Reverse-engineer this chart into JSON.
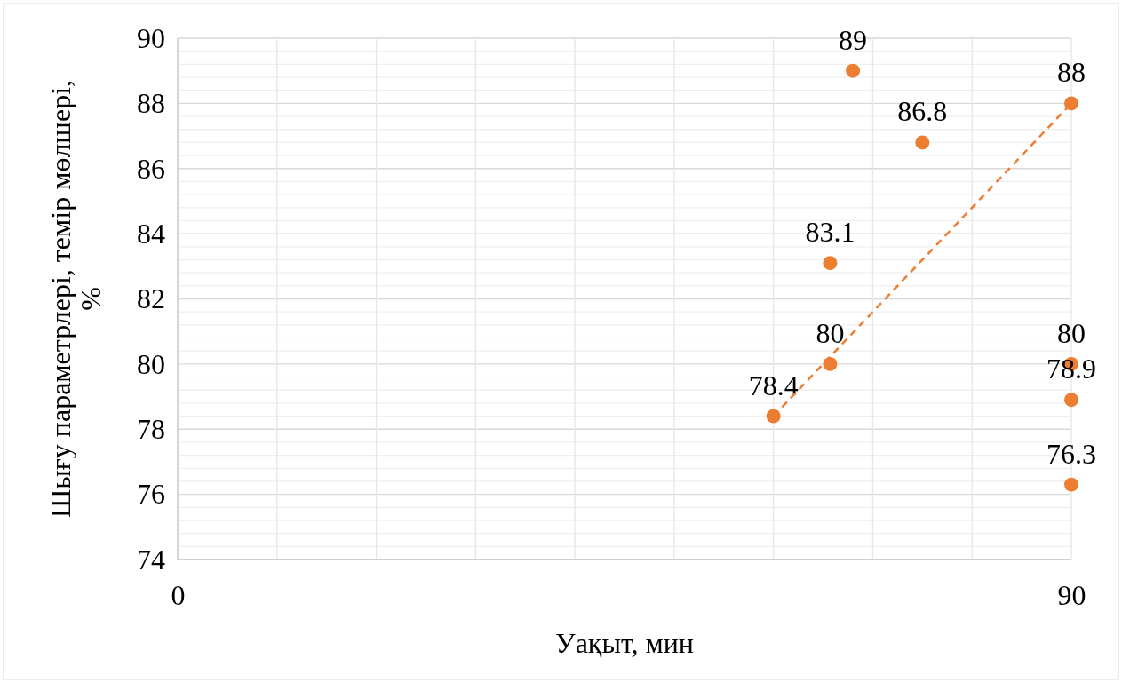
{
  "chart_data": {
    "type": "scatter",
    "xlabel": "Уақыт, мин",
    "ylabel": "Шығу параметрлері, темір мөлшері, %",
    "xlim": [
      0,
      90
    ],
    "ylim": [
      74,
      90
    ],
    "xticks": [
      0,
      {
        "value": 10,
        "label": null
      },
      {
        "value": 20,
        "label": null
      },
      {
        "value": 30,
        "label": null
      },
      {
        "value": 40,
        "label": null
      },
      {
        "value": 50,
        "label": null
      },
      {
        "value": 60,
        "label": null
      },
      {
        "value": 70,
        "label": null
      },
      {
        "value": 80,
        "label": null
      },
      90
    ],
    "yticks": [
      74,
      {
        "value": 74.4,
        "label": null
      },
      {
        "value": 74.8,
        "label": null
      },
      {
        "value": 75.2,
        "label": null
      },
      {
        "value": 75.6,
        "label": null
      },
      76,
      {
        "value": 76.4,
        "label": null
      },
      {
        "value": 76.8,
        "label": null
      },
      {
        "value": 77.2,
        "label": null
      },
      {
        "value": 77.6,
        "label": null
      },
      78,
      {
        "value": 78.4,
        "label": null
      },
      {
        "value": 78.8,
        "label": null
      },
      {
        "value": 79.2,
        "label": null
      },
      {
        "value": 79.6,
        "label": null
      },
      80,
      {
        "value": 80.4,
        "label": null
      },
      {
        "value": 80.8,
        "label": null
      },
      {
        "value": 81.2,
        "label": null
      },
      {
        "value": 81.6,
        "label": null
      },
      82,
      {
        "value": 82.4,
        "label": null
      },
      {
        "value": 82.8,
        "label": null
      },
      {
        "value": 83.2,
        "label": null
      },
      {
        "value": 83.6,
        "label": null
      },
      84,
      {
        "value": 84.4,
        "label": null
      },
      {
        "value": 84.8,
        "label": null
      },
      {
        "value": 85.2,
        "label": null
      },
      {
        "value": 85.6,
        "label": null
      },
      86,
      {
        "value": 86.4,
        "label": null
      },
      {
        "value": 86.8,
        "label": null
      },
      {
        "value": 87.2,
        "label": null
      },
      {
        "value": 87.6,
        "label": null
      },
      88,
      {
        "value": 88.4,
        "label": null
      },
      {
        "value": 88.8,
        "label": null
      },
      {
        "value": 89.2,
        "label": null
      },
      {
        "value": 89.6,
        "label": null
      },
      90
    ],
    "grid": true,
    "data_labels": true,
    "marker": "circle",
    "series": [
      {
        "color": "#ed7d31",
        "x": [
          60,
          65.7,
          65.7,
          68,
          75,
          90,
          90,
          90,
          90
        ],
        "values": [
          78.4,
          80,
          83.1,
          89,
          86.8,
          88,
          80,
          78.9,
          76.3
        ]
      },
      {
        "type": "line",
        "color": "#ed7d31",
        "line_style": "dashed",
        "marker": "none",
        "x": [
          60,
          90
        ],
        "values": [
          78.4,
          88
        ],
        "value_labels": [
          null,
          null
        ]
      }
    ]
  }
}
